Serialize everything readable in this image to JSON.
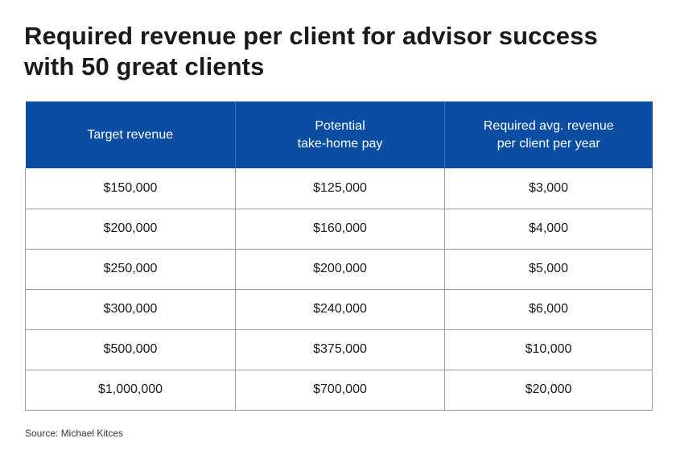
{
  "title": "Required revenue per client for advisor success with 50 great clients",
  "source": "Source: Michael Kitces",
  "chart_data": {
    "type": "table",
    "columns": [
      "Target revenue",
      "Potential\ntake-home pay",
      "Required avg. revenue\nper client per year"
    ],
    "rows": [
      [
        "$150,000",
        "$125,000",
        "$3,000"
      ],
      [
        "$200,000",
        "$160,000",
        "$4,000"
      ],
      [
        "$250,000",
        "$200,000",
        "$5,000"
      ],
      [
        "$300,000",
        "$240,000",
        "$6,000"
      ],
      [
        "$500,000",
        "$375,000",
        "$10,000"
      ],
      [
        "$1,000,000",
        "$700,000",
        "$20,000"
      ]
    ],
    "header_color": "#0a4da2",
    "header_text_color": "#ffffff",
    "border_color": "#9c9c9c"
  }
}
